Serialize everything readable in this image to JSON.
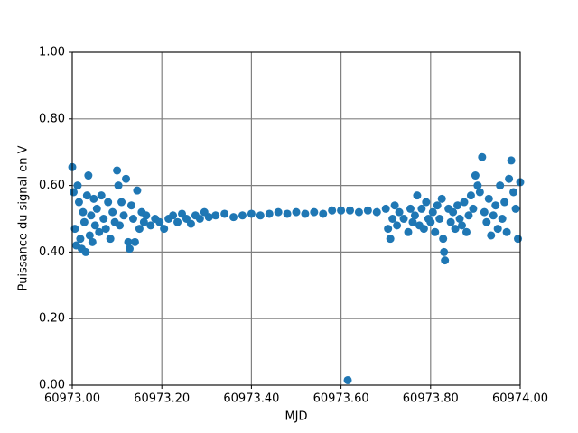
{
  "chart_data": {
    "type": "scatter",
    "xlabel": "MJD",
    "ylabel": "Puissance du signal en V",
    "color": "#1f77b4",
    "grid": true,
    "xlim": [
      60973.0,
      60974.0
    ],
    "xticks": [
      {
        "value": 60973.0,
        "label": "60973.00"
      },
      {
        "value": 60973.2,
        "label": "60973.20"
      },
      {
        "value": 60973.4,
        "label": "60973.40"
      },
      {
        "value": 60973.6,
        "label": "60973.60"
      },
      {
        "value": 60973.8,
        "label": "60973.80"
      },
      {
        "value": 60974.0,
        "label": "60974.00"
      }
    ],
    "ylim": [
      0.0,
      1.0
    ],
    "yticks": [
      {
        "value": 0.0,
        "label": "0.00"
      },
      {
        "value": 0.2,
        "label": "0.20"
      },
      {
        "value": 0.4,
        "label": "0.40"
      },
      {
        "value": 0.6,
        "label": "0.60"
      },
      {
        "value": 0.8,
        "label": "0.80"
      },
      {
        "value": 1.0,
        "label": "1.00"
      }
    ],
    "x": [
      60973.0,
      60973.003,
      60973.006,
      60973.009,
      60973.012,
      60973.015,
      60973.018,
      60973.021,
      60973.024,
      60973.027,
      60973.03,
      60973.033,
      60973.036,
      60973.039,
      60973.042,
      60973.045,
      60973.048,
      60973.051,
      60973.055,
      60973.06,
      60973.065,
      60973.07,
      60973.075,
      60973.08,
      60973.085,
      60973.09,
      60973.095,
      60973.1,
      60973.103,
      60973.106,
      60973.11,
      60973.115,
      60973.12,
      60973.125,
      60973.128,
      60973.132,
      60973.136,
      60973.14,
      60973.145,
      60973.15,
      60973.155,
      60973.16,
      60973.165,
      60973.175,
      60973.185,
      60973.195,
      60973.205,
      60973.215,
      60973.225,
      60973.235,
      60973.245,
      60973.255,
      60973.265,
      60973.275,
      60973.285,
      60973.295,
      60973.305,
      60973.32,
      60973.34,
      60973.36,
      60973.38,
      60973.4,
      60973.42,
      60973.44,
      60973.46,
      60973.48,
      60973.5,
      60973.52,
      60973.54,
      60973.56,
      60973.58,
      60973.6,
      60973.615,
      60973.62,
      60973.64,
      60973.66,
      60973.68,
      60973.7,
      60973.705,
      60973.71,
      60973.715,
      60973.72,
      60973.725,
      60973.73,
      60973.74,
      60973.75,
      60973.755,
      60973.76,
      60973.765,
      60973.77,
      60973.775,
      60973.78,
      60973.785,
      60973.79,
      60973.795,
      60973.8,
      60973.805,
      60973.81,
      60973.815,
      60973.82,
      60973.825,
      60973.828,
      60973.83,
      60973.832,
      60973.84,
      60973.845,
      60973.85,
      60973.855,
      60973.86,
      60973.865,
      60973.87,
      60973.875,
      60973.88,
      60973.885,
      60973.89,
      60973.895,
      60973.9,
      60973.905,
      60973.91,
      60973.915,
      60973.92,
      60973.925,
      60973.93,
      60973.935,
      60973.94,
      60973.945,
      60973.95,
      60973.955,
      60973.96,
      60973.965,
      60973.97,
      60973.975,
      60973.98,
      60973.985,
      60973.99,
      60973.995,
      60974.0
    ],
    "values": [
      0.655,
      0.58,
      0.47,
      0.42,
      0.6,
      0.55,
      0.44,
      0.41,
      0.52,
      0.49,
      0.4,
      0.57,
      0.63,
      0.45,
      0.51,
      0.43,
      0.56,
      0.48,
      0.53,
      0.46,
      0.57,
      0.5,
      0.47,
      0.55,
      0.44,
      0.52,
      0.49,
      0.645,
      0.6,
      0.48,
      0.55,
      0.51,
      0.62,
      0.43,
      0.41,
      0.54,
      0.5,
      0.43,
      0.585,
      0.47,
      0.52,
      0.49,
      0.51,
      0.48,
      0.5,
      0.49,
      0.47,
      0.5,
      0.51,
      0.49,
      0.515,
      0.5,
      0.485,
      0.51,
      0.5,
      0.52,
      0.505,
      0.51,
      0.515,
      0.505,
      0.51,
      0.515,
      0.51,
      0.515,
      0.52,
      0.515,
      0.52,
      0.515,
      0.52,
      0.515,
      0.525,
      0.525,
      0.015,
      0.525,
      0.52,
      0.525,
      0.52,
      0.53,
      0.47,
      0.44,
      0.5,
      0.54,
      0.48,
      0.52,
      0.5,
      0.46,
      0.53,
      0.49,
      0.51,
      0.57,
      0.48,
      0.53,
      0.47,
      0.55,
      0.5,
      0.49,
      0.52,
      0.46,
      0.54,
      0.5,
      0.56,
      0.44,
      0.4,
      0.375,
      0.53,
      0.49,
      0.52,
      0.47,
      0.54,
      0.5,
      0.48,
      0.55,
      0.46,
      0.51,
      0.57,
      0.53,
      0.63,
      0.6,
      0.58,
      0.685,
      0.52,
      0.49,
      0.56,
      0.45,
      0.51,
      0.54,
      0.47,
      0.6,
      0.5,
      0.55,
      0.46,
      0.62,
      0.675,
      0.58,
      0.53,
      0.44,
      0.61
    ]
  }
}
